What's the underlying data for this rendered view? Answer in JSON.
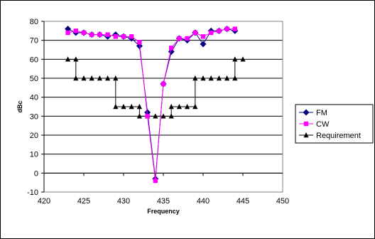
{
  "chart_data": {
    "type": "line",
    "title": "",
    "xlabel": "Frequency",
    "ylabel": "dBc",
    "xlim": [
      420,
      450
    ],
    "ylim": [
      -10,
      80
    ],
    "xticks": [
      420,
      425,
      430,
      435,
      440,
      445,
      450
    ],
    "yticks": [
      -10,
      0,
      10,
      20,
      30,
      40,
      50,
      60,
      70,
      80
    ],
    "grid": "horizontal",
    "legend_position": "right",
    "series": [
      {
        "name": "FM",
        "color": "#000080",
        "marker": "diamond",
        "step": false,
        "x": [
          423,
          424,
          425,
          426,
          427,
          428,
          429,
          430,
          431,
          432,
          433,
          434,
          435,
          436,
          437,
          438,
          439,
          440,
          441,
          442,
          443,
          444
        ],
        "y": [
          76,
          74,
          74,
          73,
          73,
          72,
          73,
          72,
          71,
          67,
          32,
          -3,
          47,
          64,
          71,
          70,
          74,
          68,
          75,
          75,
          76,
          75
        ]
      },
      {
        "name": "CW",
        "color": "#ff00ff",
        "marker": "square",
        "step": false,
        "x": [
          423,
          424,
          425,
          426,
          427,
          428,
          429,
          430,
          431,
          432,
          433,
          434,
          435,
          436,
          437,
          438,
          439,
          440,
          441,
          442,
          443,
          444
        ],
        "y": [
          74,
          75,
          74,
          73,
          73,
          73,
          72,
          72,
          72,
          69,
          30,
          -4,
          47,
          66,
          71,
          71,
          74,
          72,
          74,
          75,
          76,
          76
        ]
      },
      {
        "name": "Requirement",
        "color": "#000000",
        "marker": "triangle",
        "step": true,
        "x": [
          423,
          424,
          424,
          425,
          426,
          427,
          428,
          429,
          429,
          430,
          431,
          432,
          432,
          433,
          433,
          434,
          435,
          436,
          436,
          437,
          438,
          439,
          439,
          440,
          441,
          442,
          443,
          444,
          444,
          445
        ],
        "y": [
          60,
          60,
          50,
          50,
          50,
          50,
          50,
          50,
          35,
          35,
          35,
          35,
          30,
          30,
          30,
          30,
          30,
          30,
          35,
          35,
          35,
          35,
          50,
          50,
          50,
          50,
          50,
          50,
          60,
          60
        ]
      }
    ]
  }
}
